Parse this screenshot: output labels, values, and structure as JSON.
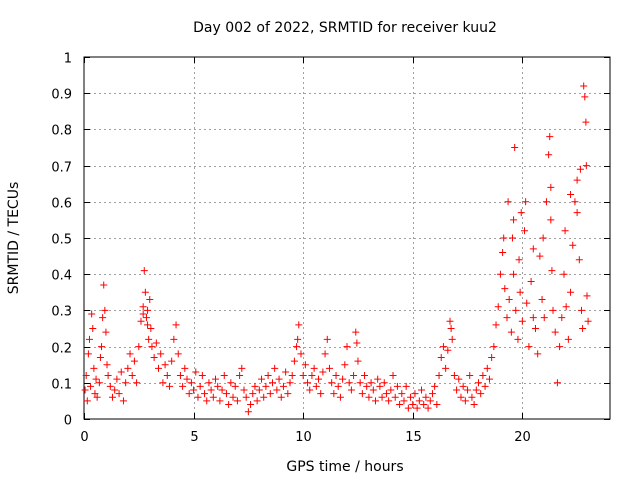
{
  "chart_data": {
    "type": "scatter",
    "title": "Day 002 of 2022, SRMTID for receiver kuu2",
    "xlabel": "GPS time / hours",
    "ylabel": "SRMTID / TECUs",
    "xlim": [
      0,
      24
    ],
    "ylim": [
      0,
      1
    ],
    "xticks": [
      0,
      5,
      10,
      15,
      20
    ],
    "xtick_labels": [
      "0",
      "5",
      "10",
      "15",
      "20"
    ],
    "yticks": [
      0,
      0.1,
      0.2,
      0.3,
      0.4,
      0.5,
      0.6,
      0.7,
      0.8,
      0.9,
      1
    ],
    "ytick_labels": [
      "0",
      "0.1",
      "0.2",
      "0.3",
      "0.4",
      "0.5",
      "0.6",
      "0.7",
      "0.8",
      "0.9",
      "1"
    ],
    "grid": true,
    "marker": "+",
    "series": [
      {
        "name": "SRMTID",
        "color": "#ff0000",
        "points": [
          [
            0.05,
            0.08
          ],
          [
            0.1,
            0.12
          ],
          [
            0.15,
            0.05
          ],
          [
            0.2,
            0.18
          ],
          [
            0.25,
            0.22
          ],
          [
            0.3,
            0.09
          ],
          [
            0.35,
            0.29
          ],
          [
            0.4,
            0.25
          ],
          [
            0.45,
            0.14
          ],
          [
            0.5,
            0.07
          ],
          [
            0.55,
            0.11
          ],
          [
            0.6,
            0.06
          ],
          [
            0.7,
            0.1
          ],
          [
            0.75,
            0.17
          ],
          [
            0.8,
            0.2
          ],
          [
            0.85,
            0.28
          ],
          [
            0.9,
            0.37
          ],
          [
            0.95,
            0.3
          ],
          [
            1.0,
            0.24
          ],
          [
            1.05,
            0.15
          ],
          [
            1.1,
            0.12
          ],
          [
            1.2,
            0.09
          ],
          [
            1.3,
            0.06
          ],
          [
            1.4,
            0.08
          ],
          [
            1.5,
            0.11
          ],
          [
            1.6,
            0.07
          ],
          [
            1.7,
            0.13
          ],
          [
            1.8,
            0.05
          ],
          [
            1.9,
            0.1
          ],
          [
            2.0,
            0.14
          ],
          [
            2.1,
            0.18
          ],
          [
            2.2,
            0.12
          ],
          [
            2.3,
            0.16
          ],
          [
            2.4,
            0.1
          ],
          [
            2.5,
            0.2
          ],
          [
            2.6,
            0.27
          ],
          [
            2.7,
            0.31
          ],
          [
            2.75,
            0.41
          ],
          [
            2.8,
            0.35
          ],
          [
            2.85,
            0.28
          ],
          [
            2.9,
            0.3
          ],
          [
            2.95,
            0.22
          ],
          [
            3.0,
            0.33
          ],
          [
            3.05,
            0.25
          ],
          [
            3.1,
            0.2
          ],
          [
            3.2,
            0.17
          ],
          [
            3.3,
            0.21
          ],
          [
            3.4,
            0.14
          ],
          [
            3.5,
            0.18
          ],
          [
            3.6,
            0.1
          ],
          [
            3.7,
            0.15
          ],
          [
            3.8,
            0.12
          ],
          [
            3.9,
            0.09
          ],
          [
            4.0,
            0.16
          ],
          [
            4.1,
            0.22
          ],
          [
            4.2,
            0.26
          ],
          [
            4.3,
            0.18
          ],
          [
            4.4,
            0.12
          ],
          [
            4.5,
            0.09
          ],
          [
            4.6,
            0.14
          ],
          [
            4.7,
            0.11
          ],
          [
            4.8,
            0.07
          ],
          [
            4.9,
            0.1
          ],
          [
            5.0,
            0.08
          ],
          [
            5.1,
            0.13
          ],
          [
            5.2,
            0.06
          ],
          [
            5.3,
            0.09
          ],
          [
            5.4,
            0.12
          ],
          [
            5.5,
            0.07
          ],
          [
            5.6,
            0.05
          ],
          [
            5.7,
            0.1
          ],
          [
            5.8,
            0.08
          ],
          [
            5.9,
            0.06
          ],
          [
            6.0,
            0.11
          ],
          [
            6.1,
            0.09
          ],
          [
            6.2,
            0.05
          ],
          [
            6.3,
            0.08
          ],
          [
            6.4,
            0.12
          ],
          [
            6.5,
            0.07
          ],
          [
            6.6,
            0.04
          ],
          [
            6.7,
            0.1
          ],
          [
            6.8,
            0.06
          ],
          [
            6.9,
            0.09
          ],
          [
            7.0,
            0.05
          ],
          [
            7.1,
            0.12
          ],
          [
            7.2,
            0.14
          ],
          [
            7.3,
            0.08
          ],
          [
            7.4,
            0.06
          ],
          [
            7.5,
            0.02
          ],
          [
            7.6,
            0.04
          ],
          [
            7.7,
            0.07
          ],
          [
            7.8,
            0.09
          ],
          [
            7.9,
            0.05
          ],
          [
            8.0,
            0.08
          ],
          [
            8.1,
            0.11
          ],
          [
            8.2,
            0.06
          ],
          [
            8.3,
            0.09
          ],
          [
            8.4,
            0.12
          ],
          [
            8.5,
            0.07
          ],
          [
            8.6,
            0.1
          ],
          [
            8.7,
            0.14
          ],
          [
            8.8,
            0.08
          ],
          [
            8.9,
            0.11
          ],
          [
            9.0,
            0.06
          ],
          [
            9.1,
            0.09
          ],
          [
            9.2,
            0.13
          ],
          [
            9.3,
            0.07
          ],
          [
            9.4,
            0.1
          ],
          [
            9.5,
            0.12
          ],
          [
            9.6,
            0.16
          ],
          [
            9.7,
            0.2
          ],
          [
            9.8,
            0.26
          ],
          [
            9.9,
            0.18
          ],
          [
            10.0,
            0.12
          ],
          [
            10.1,
            0.15
          ],
          [
            10.2,
            0.1
          ],
          [
            10.3,
            0.08
          ],
          [
            10.4,
            0.12
          ],
          [
            10.5,
            0.14
          ],
          [
            10.6,
            0.09
          ],
          [
            10.7,
            0.11
          ],
          [
            10.8,
            0.07
          ],
          [
            10.9,
            0.13
          ],
          [
            11.0,
            0.18
          ],
          [
            11.1,
            0.22
          ],
          [
            11.2,
            0.14
          ],
          [
            11.3,
            0.1
          ],
          [
            11.4,
            0.07
          ],
          [
            11.5,
            0.12
          ],
          [
            11.6,
            0.09
          ],
          [
            11.7,
            0.06
          ],
          [
            11.8,
            0.11
          ],
          [
            11.9,
            0.15
          ],
          [
            12.0,
            0.2
          ],
          [
            12.1,
            0.1
          ],
          [
            12.2,
            0.08
          ],
          [
            12.3,
            0.12
          ],
          [
            12.4,
            0.24
          ],
          [
            12.5,
            0.16
          ],
          [
            12.6,
            0.1
          ],
          [
            12.7,
            0.07
          ],
          [
            12.8,
            0.12
          ],
          [
            12.9,
            0.09
          ],
          [
            13.0,
            0.06
          ],
          [
            13.1,
            0.1
          ],
          [
            13.2,
            0.08
          ],
          [
            13.3,
            0.05
          ],
          [
            13.4,
            0.11
          ],
          [
            13.5,
            0.09
          ],
          [
            13.6,
            0.06
          ],
          [
            13.7,
            0.1
          ],
          [
            13.8,
            0.07
          ],
          [
            13.9,
            0.05
          ],
          [
            14.0,
            0.08
          ],
          [
            14.1,
            0.12
          ],
          [
            14.2,
            0.06
          ],
          [
            14.3,
            0.09
          ],
          [
            14.4,
            0.04
          ],
          [
            14.5,
            0.07
          ],
          [
            14.6,
            0.05
          ],
          [
            14.7,
            0.09
          ],
          [
            14.8,
            0.03
          ],
          [
            14.9,
            0.06
          ],
          [
            15.0,
            0.04
          ],
          [
            15.1,
            0.07
          ],
          [
            15.2,
            0.03
          ],
          [
            15.3,
            0.05
          ],
          [
            15.4,
            0.08
          ],
          [
            15.5,
            0.04
          ],
          [
            15.6,
            0.06
          ],
          [
            15.7,
            0.03
          ],
          [
            15.8,
            0.05
          ],
          [
            15.9,
            0.07
          ],
          [
            16.0,
            0.09
          ],
          [
            16.1,
            0.04
          ],
          [
            16.2,
            0.12
          ],
          [
            16.3,
            0.17
          ],
          [
            16.4,
            0.2
          ],
          [
            16.5,
            0.14
          ],
          [
            16.6,
            0.19
          ],
          [
            16.7,
            0.27
          ],
          [
            16.8,
            0.22
          ],
          [
            16.9,
            0.12
          ],
          [
            17.0,
            0.08
          ],
          [
            17.1,
            0.11
          ],
          [
            17.2,
            0.06
          ],
          [
            17.3,
            0.09
          ],
          [
            17.4,
            0.05
          ],
          [
            17.5,
            0.08
          ],
          [
            17.6,
            0.12
          ],
          [
            17.7,
            0.06
          ],
          [
            17.8,
            0.04
          ],
          [
            17.9,
            0.08
          ],
          [
            18.0,
            0.1
          ],
          [
            18.1,
            0.07
          ],
          [
            18.2,
            0.12
          ],
          [
            18.3,
            0.09
          ],
          [
            18.4,
            0.14
          ],
          [
            18.5,
            0.11
          ],
          [
            18.6,
            0.17
          ],
          [
            18.7,
            0.2
          ],
          [
            18.8,
            0.26
          ],
          [
            18.9,
            0.31
          ],
          [
            19.0,
            0.4
          ],
          [
            19.1,
            0.46
          ],
          [
            19.15,
            0.5
          ],
          [
            19.2,
            0.36
          ],
          [
            19.3,
            0.28
          ],
          [
            19.35,
            0.6
          ],
          [
            19.4,
            0.33
          ],
          [
            19.5,
            0.24
          ],
          [
            19.55,
            0.5
          ],
          [
            19.6,
            0.4
          ],
          [
            19.65,
            0.75
          ],
          [
            19.7,
            0.3
          ],
          [
            19.8,
            0.22
          ],
          [
            19.85,
            0.44
          ],
          [
            19.9,
            0.35
          ],
          [
            20.0,
            0.27
          ],
          [
            20.1,
            0.52
          ],
          [
            20.15,
            0.6
          ],
          [
            20.2,
            0.32
          ],
          [
            20.3,
            0.2
          ],
          [
            20.4,
            0.38
          ],
          [
            20.5,
            0.28
          ],
          [
            20.6,
            0.25
          ],
          [
            20.7,
            0.18
          ],
          [
            20.8,
            0.45
          ],
          [
            20.9,
            0.33
          ],
          [
            20.95,
            0.5
          ],
          [
            21.0,
            0.28
          ],
          [
            21.1,
            0.6
          ],
          [
            21.2,
            0.73
          ],
          [
            21.25,
            0.78
          ],
          [
            21.3,
            0.55
          ],
          [
            21.35,
            0.41
          ],
          [
            21.4,
            0.3
          ],
          [
            21.5,
            0.24
          ],
          [
            21.6,
            0.1
          ],
          [
            21.7,
            0.2
          ],
          [
            21.8,
            0.28
          ],
          [
            21.9,
            0.4
          ],
          [
            22.0,
            0.31
          ],
          [
            22.1,
            0.22
          ],
          [
            22.2,
            0.35
          ],
          [
            22.3,
            0.48
          ],
          [
            22.4,
            0.6
          ],
          [
            22.5,
            0.57
          ],
          [
            22.6,
            0.44
          ],
          [
            22.65,
            0.69
          ],
          [
            22.7,
            0.3
          ],
          [
            22.75,
            0.25
          ],
          [
            22.8,
            0.92
          ],
          [
            22.85,
            0.89
          ],
          [
            22.9,
            0.82
          ],
          [
            22.92,
            0.7
          ],
          [
            22.95,
            0.34
          ],
          [
            23.0,
            0.27
          ],
          [
            2.7,
            0.29
          ],
          [
            2.9,
            0.26
          ],
          [
            16.75,
            0.25
          ],
          [
            9.75,
            0.22
          ],
          [
            12.45,
            0.21
          ],
          [
            19.6,
            0.55
          ],
          [
            21.3,
            0.64
          ],
          [
            22.2,
            0.62
          ],
          [
            22.5,
            0.66
          ],
          [
            19.95,
            0.57
          ],
          [
            20.5,
            0.47
          ],
          [
            21.95,
            0.52
          ]
        ]
      }
    ]
  }
}
